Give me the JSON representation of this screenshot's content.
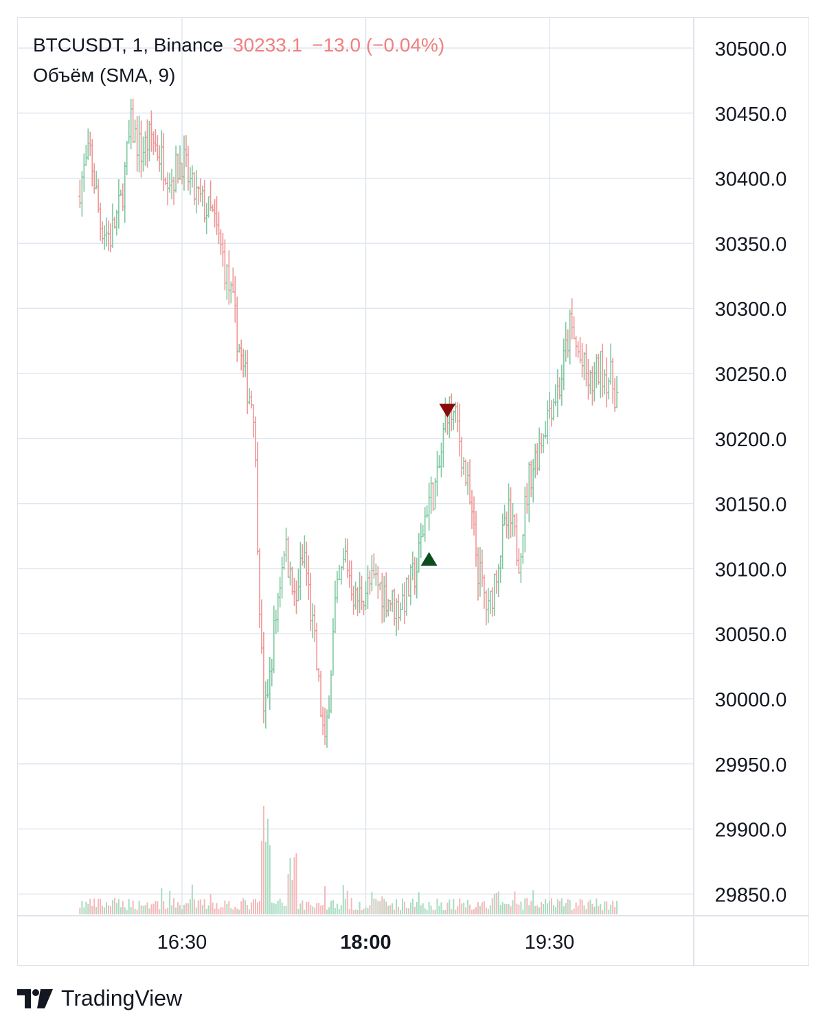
{
  "legend": {
    "symbol": "BTCUSDT, 1, Binance",
    "last_price": "30233.1",
    "change": "−13.0 (−0.04%)",
    "indicator": "Объём (SMA, 9)"
  },
  "brand": {
    "name": "TradingView"
  },
  "colors": {
    "up": "#26a69a",
    "down": "#ef5350",
    "up_wick": "#7ec8a0",
    "down_wick": "#f09595",
    "grid": "#e0e6f0",
    "text": "#131722",
    "buy_marker": "#0b4d1e",
    "sell_marker": "#8b0a0a"
  },
  "chart_data": {
    "type": "ohlc",
    "symbol": "BTCUSDT",
    "interval": "1",
    "exchange": "Binance",
    "y_axis": {
      "ticks": [
        "30500.0",
        "30450.0",
        "30400.0",
        "30350.0",
        "30300.0",
        "30250.0",
        "30200.0",
        "30150.0",
        "30100.0",
        "30050.0",
        "30000.0",
        "29950.0",
        "29900.0",
        "29850.0"
      ],
      "range": [
        29835,
        30515
      ]
    },
    "x_axis": {
      "ticks": [
        {
          "label": "16:30",
          "bold": false
        },
        {
          "label": "18:00",
          "bold": true
        },
        {
          "label": "19:30",
          "bold": false
        }
      ]
    },
    "grid": true,
    "price_path": [
      [
        "15:40",
        30395
      ],
      [
        "15:45",
        30420
      ],
      [
        "15:50",
        30365
      ],
      [
        "15:55",
        30355
      ],
      [
        "16:00",
        30380
      ],
      [
        "16:05",
        30440
      ],
      [
        "16:10",
        30420
      ],
      [
        "16:15",
        30432
      ],
      [
        "16:20",
        30415
      ],
      [
        "16:25",
        30400
      ],
      [
        "16:30",
        30415
      ],
      [
        "16:35",
        30390
      ],
      [
        "16:40",
        30380
      ],
      [
        "16:45",
        30370
      ],
      [
        "16:50",
        30340
      ],
      [
        "16:55",
        30300
      ],
      [
        "17:00",
        30250
      ],
      [
        "17:05",
        30225
      ],
      [
        "17:10",
        29980
      ],
      [
        "17:15",
        30050
      ],
      [
        "17:20",
        30120
      ],
      [
        "17:25",
        30080
      ],
      [
        "17:30",
        30110
      ],
      [
        "17:35",
        30040
      ],
      [
        "17:40",
        29960
      ],
      [
        "17:45",
        30070
      ],
      [
        "17:50",
        30110
      ],
      [
        "17:55",
        30075
      ],
      [
        "18:00",
        30085
      ],
      [
        "18:05",
        30090
      ],
      [
        "18:10",
        30080
      ],
      [
        "18:15",
        30070
      ],
      [
        "18:20",
        30080
      ],
      [
        "18:25",
        30100
      ],
      [
        "18:30",
        30150
      ],
      [
        "18:35",
        30165
      ],
      [
        "18:40",
        30225
      ],
      [
        "18:45",
        30210
      ],
      [
        "18:50",
        30160
      ],
      [
        "18:55",
        30100
      ],
      [
        "19:00",
        30065
      ],
      [
        "19:05",
        30110
      ],
      [
        "19:10",
        30140
      ],
      [
        "19:15",
        30110
      ],
      [
        "19:20",
        30170
      ],
      [
        "19:25",
        30195
      ],
      [
        "19:30",
        30225
      ],
      [
        "19:35",
        30240
      ],
      [
        "19:40",
        30285
      ],
      [
        "19:45",
        30260
      ],
      [
        "19:50",
        30240
      ],
      [
        "19:55",
        30255
      ],
      [
        "20:00",
        30245
      ],
      [
        "20:03",
        30233
      ]
    ],
    "markers": [
      {
        "type": "buy",
        "time": "18:31",
        "price": 30107
      },
      {
        "type": "sell",
        "time": "18:40",
        "price": 30222
      }
    ],
    "volume": {
      "indicator": "SMA",
      "period": 9
    }
  }
}
